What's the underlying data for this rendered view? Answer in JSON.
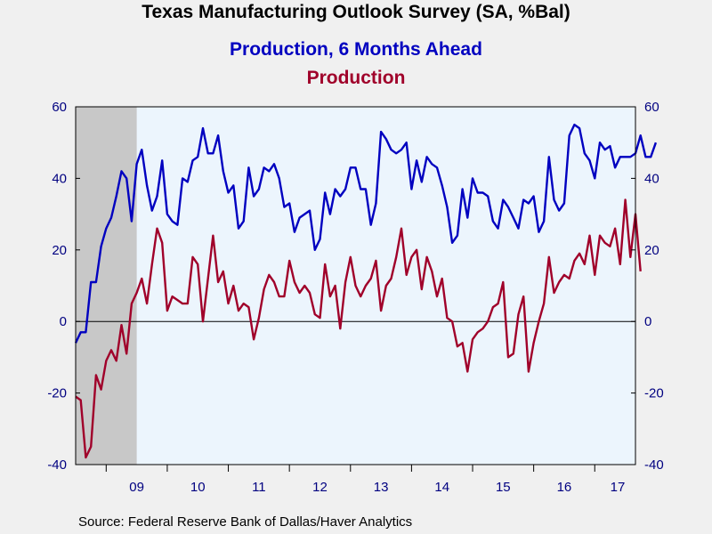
{
  "chart_data": {
    "type": "line",
    "title": "Texas Manufacturing Outlook Survey (SA, %Bal)",
    "source": "Source:  Federal Reserve Bank of Dallas/Haver Analytics",
    "xlabel": "",
    "ylabel": "",
    "ylim": [
      -40,
      60
    ],
    "y_ticks_left": [
      "60",
      "40",
      "20",
      "0",
      "-20",
      "-40"
    ],
    "y_ticks_right": [
      "60",
      "40",
      "20",
      "0",
      "-20",
      "-40"
    ],
    "x_start": "2008-07",
    "x_end": "2017-09",
    "x_tick_labels": [
      "09",
      "10",
      "11",
      "12",
      "13",
      "14",
      "15",
      "16",
      "17"
    ],
    "recession_shading": {
      "from": "2008-07",
      "to": "2009-06"
    },
    "zero_line": true,
    "colors": {
      "plot_bg": "#ecf5fd",
      "recession": "#c8c8c8",
      "axis": "#000000",
      "tick_text": "#000080"
    },
    "series": [
      {
        "name": "Production, 6 Months Ahead",
        "color": "#0000c0",
        "start": "2008-07",
        "values": [
          -6,
          -3,
          -3,
          11,
          11,
          21,
          26,
          29,
          35,
          42,
          40,
          28,
          44,
          48,
          38,
          31,
          35,
          45,
          30,
          28,
          27,
          40,
          39,
          45,
          46,
          54,
          47,
          47,
          52,
          42,
          36,
          38,
          26,
          28,
          43,
          35,
          37,
          43,
          42,
          44,
          40,
          32,
          33,
          25,
          29,
          30,
          31,
          20,
          23,
          36,
          30,
          37,
          35,
          37,
          43,
          43,
          37,
          37,
          27,
          33,
          53,
          51,
          48,
          47,
          48,
          50,
          37,
          45,
          39,
          46,
          44,
          43,
          38,
          32,
          22,
          24,
          37,
          29,
          40,
          36,
          36,
          35,
          28,
          26,
          34,
          32,
          29,
          26,
          34,
          33,
          35,
          25,
          28,
          46,
          34,
          31,
          33,
          52,
          55,
          54,
          47,
          45,
          40,
          50,
          48,
          49,
          43,
          46,
          46,
          46,
          47,
          52,
          46,
          46,
          50
        ]
      },
      {
        "name": "Production",
        "color": "#a0002a",
        "start": "2008-07",
        "values": [
          -21,
          -22,
          -38,
          -35,
          -15,
          -19,
          -11,
          -8,
          -11,
          -1,
          -9,
          5,
          8,
          12,
          5,
          16,
          26,
          22,
          3,
          7,
          6,
          5,
          5,
          18,
          16,
          0,
          12,
          24,
          11,
          14,
          5,
          10,
          3,
          5,
          4,
          -5,
          1,
          9,
          13,
          11,
          7,
          7,
          17,
          11,
          8,
          10,
          8,
          2,
          1,
          16,
          7,
          10,
          -2,
          11,
          18,
          10,
          7,
          10,
          12,
          17,
          3,
          10,
          12,
          18,
          26,
          13,
          18,
          20,
          9,
          18,
          14,
          7,
          12,
          1,
          0,
          -7,
          -6,
          -14,
          -5,
          -3,
          -2,
          0,
          4,
          5,
          11,
          -10,
          -9,
          2,
          7,
          -14,
          -6,
          0,
          5,
          18,
          8,
          11,
          13,
          12,
          17,
          19,
          16,
          24,
          13,
          24,
          22,
          21,
          26,
          16,
          34,
          18,
          30,
          14
        ]
      }
    ]
  }
}
